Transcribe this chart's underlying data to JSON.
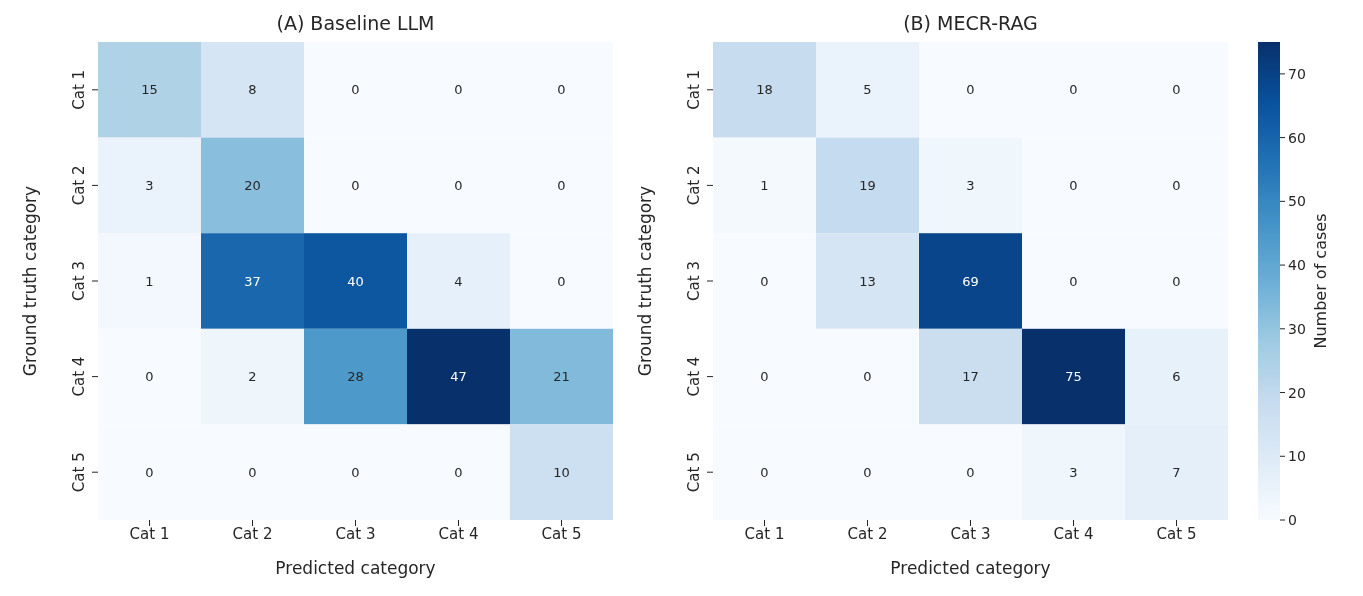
{
  "chart_data": [
    {
      "type": "heatmap",
      "data_labels": true,
      "title": "(A) Baseline LLM",
      "xlabel": "Predicted category",
      "ylabel": "Ground truth category",
      "categories": [
        "Cat 1",
        "Cat 2",
        "Cat 3",
        "Cat 4",
        "Cat 5"
      ],
      "y_categories": [
        "Cat 1",
        "Cat 2",
        "Cat 3",
        "Cat 4",
        "Cat 5"
      ],
      "cells": [
        [
          15,
          8,
          0,
          0,
          0
        ],
        [
          3,
          20,
          0,
          0,
          0
        ],
        [
          1,
          37,
          40,
          4,
          0
        ],
        [
          0,
          2,
          28,
          47,
          21
        ],
        [
          0,
          0,
          0,
          0,
          10
        ]
      ]
    },
    {
      "type": "heatmap",
      "data_labels": true,
      "title": "(B) MECR-RAG",
      "xlabel": "Predicted category",
      "ylabel": "Ground truth category",
      "clabel": "Number of cases",
      "categories": [
        "Cat 1",
        "Cat 2",
        "Cat 3",
        "Cat 4",
        "Cat 5"
      ],
      "y_categories": [
        "Cat 1",
        "Cat 2",
        "Cat 3",
        "Cat 4",
        "Cat 5"
      ],
      "cells": [
        [
          18,
          5,
          0,
          0,
          0
        ],
        [
          1,
          19,
          3,
          0,
          0
        ],
        [
          0,
          13,
          69,
          0,
          0
        ],
        [
          0,
          0,
          17,
          75,
          6
        ],
        [
          0,
          0,
          0,
          3,
          7
        ]
      ],
      "clim": [
        0,
        75
      ],
      "cticks": [
        0,
        10,
        20,
        30,
        40,
        50,
        60,
        70
      ]
    }
  ]
}
